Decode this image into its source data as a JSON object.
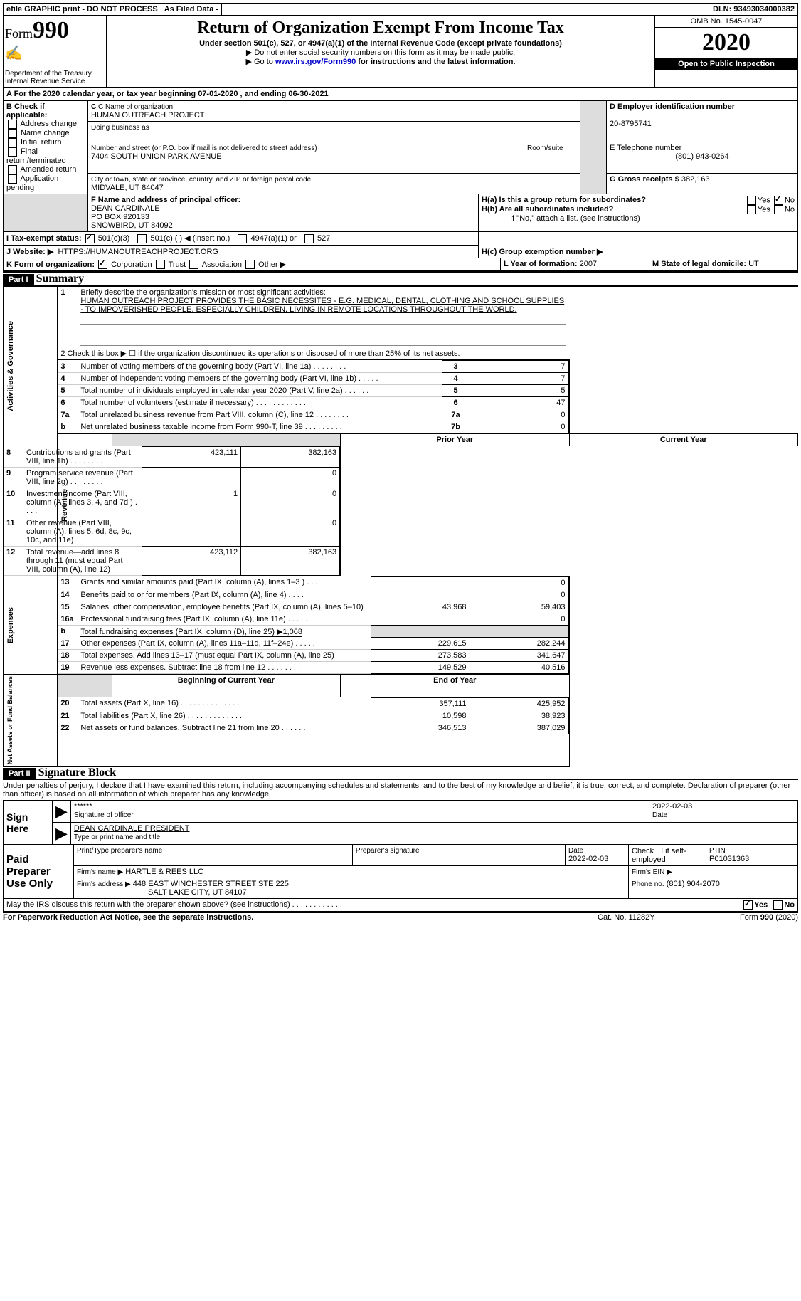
{
  "topbar": {
    "efile": "efile GRAPHIC print - DO NOT PROCESS",
    "asfiled": "As Filed Data -",
    "dln_label": "DLN:",
    "dln": "93493034000382"
  },
  "header": {
    "form_label": "Form",
    "form_num": "990",
    "dept": "Department of the Treasury\nInternal Revenue Service",
    "title": "Return of Organization Exempt From Income Tax",
    "subtitle": "Under section 501(c), 527, or 4947(a)(1) of the Internal Revenue Code (except private foundations)",
    "note1": "▶ Do not enter social security numbers on this form as it may be made public.",
    "note2_pre": "▶ Go to ",
    "note2_link": "www.irs.gov/Form990",
    "note2_post": " for instructions and the latest information.",
    "omb": "OMB No. 1545-0047",
    "year": "2020",
    "open": "Open to Public Inspection"
  },
  "rowA": "A   For the 2020 calendar year, or tax year beginning 07-01-2020   , and ending 06-30-2021",
  "B": {
    "label": "B Check if applicable:",
    "opts": [
      "Address change",
      "Name change",
      "Initial return",
      "Final return/terminated",
      "Amended return",
      "Application pending"
    ]
  },
  "C": {
    "label": "C Name of organization",
    "name": "HUMAN OUTREACH PROJECT",
    "dba_label": "Doing business as",
    "addr_label": "Number and street (or P.O. box if mail is not delivered to street address)",
    "room_label": "Room/suite",
    "addr": "7404 SOUTH UNION PARK AVENUE",
    "city_label": "City or town, state or province, country, and ZIP or foreign postal code",
    "city": "MIDVALE, UT  84047"
  },
  "D": {
    "label": "D Employer identification number",
    "val": "20-8795741"
  },
  "E": {
    "label": "E Telephone number",
    "val": "(801) 943-0264"
  },
  "G": {
    "label": "G Gross receipts $",
    "val": "382,163"
  },
  "F": {
    "label": "F  Name and address of principal officer:",
    "name": "DEAN CARDINALE",
    "po": "PO BOX 920133",
    "city": "SNOWBIRD, UT  84092"
  },
  "H": {
    "a": "H(a)  Is this a group return for subordinates?",
    "b": "H(b)  Are all subordinates included?",
    "note": "If \"No,\" attach a list. (see instructions)",
    "c": "H(c)  Group exemption number ▶"
  },
  "I": {
    "label": "I   Tax-exempt status:",
    "o1": "501(c)(3)",
    "o2": "501(c) (   ) ◀ (insert no.)",
    "o3": "4947(a)(1) or",
    "o4": "527"
  },
  "J": {
    "label": "J   Website: ▶",
    "val": "HTTPS://HUMANOUTREACHPROJECT.ORG"
  },
  "K": {
    "label": "K Form of organization:",
    "o1": "Corporation",
    "o2": "Trust",
    "o3": "Association",
    "o4": "Other ▶"
  },
  "L": {
    "label": "L Year of formation:",
    "val": "2007"
  },
  "M": {
    "label": "M State of legal domicile:",
    "val": "UT"
  },
  "part1": {
    "label": "Part I",
    "title": "Summary",
    "l1_label": "1",
    "l1_text": "Briefly describe the organization's mission or most significant activities:",
    "mission": "HUMAN OUTREACH PROJECT PROVIDES THE BASIC NECESSITES - E.G. MEDICAL, DENTAL, CLOTHING AND SCHOOL SUPPLIES - TO IMPOVERISHED PEOPLE, ESPECIALLY CHILDREN, LIVING IN REMOTE LOCATIONS THROUGHOUT THE WORLD.",
    "l2": "2   Check this box ▶ ☐ if the organization discontinued its operations or disposed of more than 25% of its net assets.",
    "pyh": "Prior Year",
    "cyh": "Current Year",
    "bcyh": "Beginning of Current Year",
    "eoyh": "End of Year",
    "sec_act": "Activities & Governance",
    "sec_rev": "Revenue",
    "sec_exp": "Expenses",
    "sec_na": "Net Assets or Fund Balances",
    "rows_act": [
      {
        "n": "3",
        "t": "Number of voting members of the governing body (Part VI, line 1a)  .  .  .  .  .  .  .  .",
        "b": "3",
        "v": "7"
      },
      {
        "n": "4",
        "t": "Number of independent voting members of the governing body (Part VI, line 1b)  .  .  .  .  .",
        "b": "4",
        "v": "7"
      },
      {
        "n": "5",
        "t": "Total number of individuals employed in calendar year 2020 (Part V, line 2a)  .  .  .  .  .  .",
        "b": "5",
        "v": "5"
      },
      {
        "n": "6",
        "t": "Total number of volunteers (estimate if necessary)   .  .  .  .  .  .  .  .  .  .  .  .",
        "b": "6",
        "v": "47"
      },
      {
        "n": "7a",
        "t": "Total unrelated business revenue from Part VIII, column (C), line 12  .  .  .  .  .  .  .  .",
        "b": "7a",
        "v": "0"
      },
      {
        "n": "b",
        "t": "Net unrelated business taxable income from Form 990-T, line 39   .  .  .  .  .  .  .  .  .",
        "b": "7b",
        "v": "0"
      }
    ],
    "rows_rev": [
      {
        "n": "8",
        "t": "Contributions and grants (Part VIII, line 1h)  .  .  .  .  .  .  .  .",
        "py": "423,111",
        "cy": "382,163"
      },
      {
        "n": "9",
        "t": "Program service revenue (Part VIII, line 2g)  .  .  .  .  .  .  .  .",
        "py": "",
        "cy": "0"
      },
      {
        "n": "10",
        "t": "Investment income (Part VIII, column (A), lines 3, 4, and 7d )  .  .  .  .",
        "py": "1",
        "cy": "0"
      },
      {
        "n": "11",
        "t": "Other revenue (Part VIII, column (A), lines 5, 6d, 8c, 9c, 10c, and 11e)",
        "py": "",
        "cy": "0"
      },
      {
        "n": "12",
        "t": "Total revenue—add lines 8 through 11 (must equal Part VIII, column (A), line 12)",
        "py": "423,112",
        "cy": "382,163"
      }
    ],
    "rows_exp": [
      {
        "n": "13",
        "t": "Grants and similar amounts paid (Part IX, column (A), lines 1–3 )  .  .  .",
        "py": "",
        "cy": "0"
      },
      {
        "n": "14",
        "t": "Benefits paid to or for members (Part IX, column (A), line 4)  .  .  .  .  .",
        "py": "",
        "cy": "0"
      },
      {
        "n": "15",
        "t": "Salaries, other compensation, employee benefits (Part IX, column (A), lines 5–10)",
        "py": "43,968",
        "cy": "59,403"
      },
      {
        "n": "16a",
        "t": "Professional fundraising fees (Part IX, column (A), line 11e)   .  .  .  .  .",
        "py": "",
        "cy": "0"
      },
      {
        "n": "b",
        "t": "Total fundraising expenses (Part IX, column (D), line 25) ▶1,068",
        "py": null,
        "cy": null
      },
      {
        "n": "17",
        "t": "Other expenses (Part IX, column (A), lines 11a–11d, 11f–24e)  .  .  .  .  .",
        "py": "229,615",
        "cy": "282,244"
      },
      {
        "n": "18",
        "t": "Total expenses. Add lines 13–17 (must equal Part IX, column (A), line 25)",
        "py": "273,583",
        "cy": "341,647"
      },
      {
        "n": "19",
        "t": "Revenue less expenses. Subtract line 18 from line 12  .  .  .  .  .  .  .  .",
        "py": "149,529",
        "cy": "40,516"
      }
    ],
    "rows_na": [
      {
        "n": "20",
        "t": "Total assets (Part X, line 16)  .  .  .  .  .  .  .  .  .  .  .  .  .  .",
        "py": "357,111",
        "cy": "425,952"
      },
      {
        "n": "21",
        "t": "Total liabilities (Part X, line 26)  .  .  .  .  .  .  .  .  .  .  .  .  .",
        "py": "10,598",
        "cy": "38,923"
      },
      {
        "n": "22",
        "t": "Net assets or fund balances. Subtract line 21 from line 20  .  .  .  .  .  .",
        "py": "346,513",
        "cy": "387,029"
      }
    ]
  },
  "part2": {
    "label": "Part II",
    "title": "Signature Block",
    "decl": "Under penalties of perjury, I declare that I have examined this return, including accompanying schedules and statements, and to the best of my knowledge and belief, it is true, correct, and complete. Declaration of preparer (other than officer) is based on all information of which preparer has any knowledge.",
    "sign_here": "Sign Here",
    "stars": "******",
    "sig_of": "Signature of officer",
    "sig_date": "2022-02-03",
    "date_lbl": "Date",
    "officer": "DEAN CARDINALE PRESIDENT",
    "type_name": "Type or print name and title",
    "paid": "Paid Preparer Use Only",
    "pt_name_lbl": "Print/Type preparer's name",
    "pt_sig_lbl": "Preparer's signature",
    "pt_date_lbl": "Date",
    "pt_date": "2022-02-03",
    "pt_check": "Check ☐ if self-employed",
    "ptin_lbl": "PTIN",
    "ptin": "P01031363",
    "firm_name_lbl": "Firm's name    ▶",
    "firm_name": "HARTLE & REES LLC",
    "firm_ein": "Firm's EIN ▶",
    "firm_addr_lbl": "Firm's address ▶",
    "firm_addr1": "448 EAST WINCHESTER STREET STE 225",
    "firm_addr2": "SALT LAKE CITY, UT  84107",
    "phone_lbl": "Phone no.",
    "phone": "(801) 904-2070",
    "may_irs": "May the IRS discuss this return with the preparer shown above? (see instructions)  .  .  .  .  .  .  .  .  .  .  .  .",
    "yes": "Yes",
    "no": "No"
  },
  "footer": {
    "left": "For Paperwork Reduction Act Notice, see the separate instructions.",
    "mid": "Cat. No. 11282Y",
    "right": "Form 990 (2020)"
  }
}
